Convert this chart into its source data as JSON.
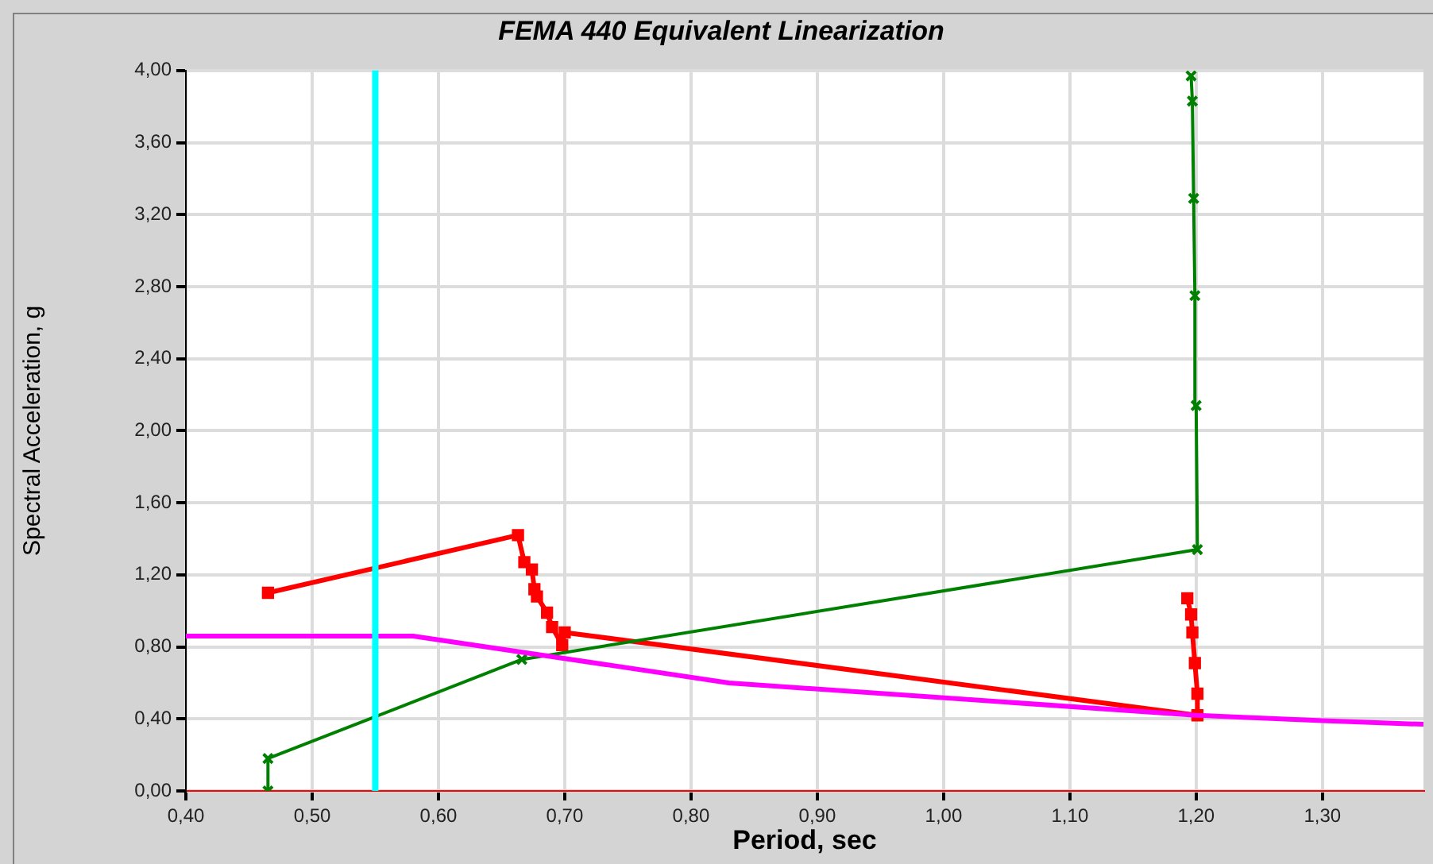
{
  "chart_data": {
    "type": "line",
    "title": "FEMA 440 Equivalent Linearization",
    "xlabel": "Period, sec",
    "ylabel": "Spectral Acceleration, g",
    "xlim": [
      0.4,
      1.38
    ],
    "xticks": [
      {
        "value": 0.4,
        "label": "0,40"
      },
      {
        "value": 0.5,
        "label": "0,50"
      },
      {
        "value": 0.6,
        "label": "0,60"
      },
      {
        "value": 0.7,
        "label": "0,70"
      },
      {
        "value": 0.8,
        "label": "0,80"
      },
      {
        "value": 0.9,
        "label": "0,90"
      },
      {
        "value": 1.0,
        "label": "1,00"
      },
      {
        "value": 1.1,
        "label": "1,10"
      },
      {
        "value": 1.2,
        "label": "1,20"
      },
      {
        "value": 1.3,
        "label": "1,30"
      }
    ],
    "ylim": [
      0,
      4
    ],
    "yticks": [
      {
        "value": 0,
        "label": "0,00"
      },
      {
        "value": 0.4,
        "label": "0,40"
      },
      {
        "value": 0.8,
        "label": "0,80"
      },
      {
        "value": 1.2,
        "label": "1,20"
      },
      {
        "value": 1.6,
        "label": "1,60"
      },
      {
        "value": 2.0,
        "label": "2,00"
      },
      {
        "value": 2.4,
        "label": "2,40"
      },
      {
        "value": 2.8,
        "label": "2,80"
      },
      {
        "value": 3.2,
        "label": "3,20"
      },
      {
        "value": 3.6,
        "label": "3,60"
      },
      {
        "value": 4.0,
        "label": "4,00"
      }
    ],
    "grid": true,
    "legend": false,
    "line_style": "solid",
    "series": [
      {
        "color": "#ff00ff",
        "marker": "none",
        "x": [
          0.4,
          0.58,
          0.83,
          1.2,
          1.3,
          1.38
        ],
        "values": [
          0.86,
          0.86,
          0.6,
          0.42,
          0.39,
          0.37
        ]
      },
      {
        "color": "#008000",
        "marker": "cross",
        "x": [
          0.465,
          0.465,
          0.666,
          1.201,
          1.2,
          1.199,
          1.198,
          1.197,
          1.196
        ],
        "values": [
          0,
          0.18,
          0.73,
          1.34,
          2.14,
          2.75,
          3.29,
          3.83,
          3.97
        ]
      },
      {
        "color": "#ff0000",
        "marker": "square",
        "x": [
          0.465,
          0.663,
          0.668,
          0.674,
          0.676,
          0.678,
          0.686,
          0.69,
          0.698,
          0.7,
          1.201,
          1.201,
          1.199,
          1.197,
          1.196,
          1.193
        ],
        "values": [
          1.1,
          1.42,
          1.27,
          1.23,
          1.12,
          1.08,
          0.99,
          0.91,
          0.81,
          0.88,
          0.42,
          0.54,
          0.71,
          0.88,
          0.98,
          1.07
        ]
      }
    ],
    "ref_lines": [
      {
        "axis": "x",
        "value": 0.55,
        "color": "#00ffff"
      }
    ]
  }
}
